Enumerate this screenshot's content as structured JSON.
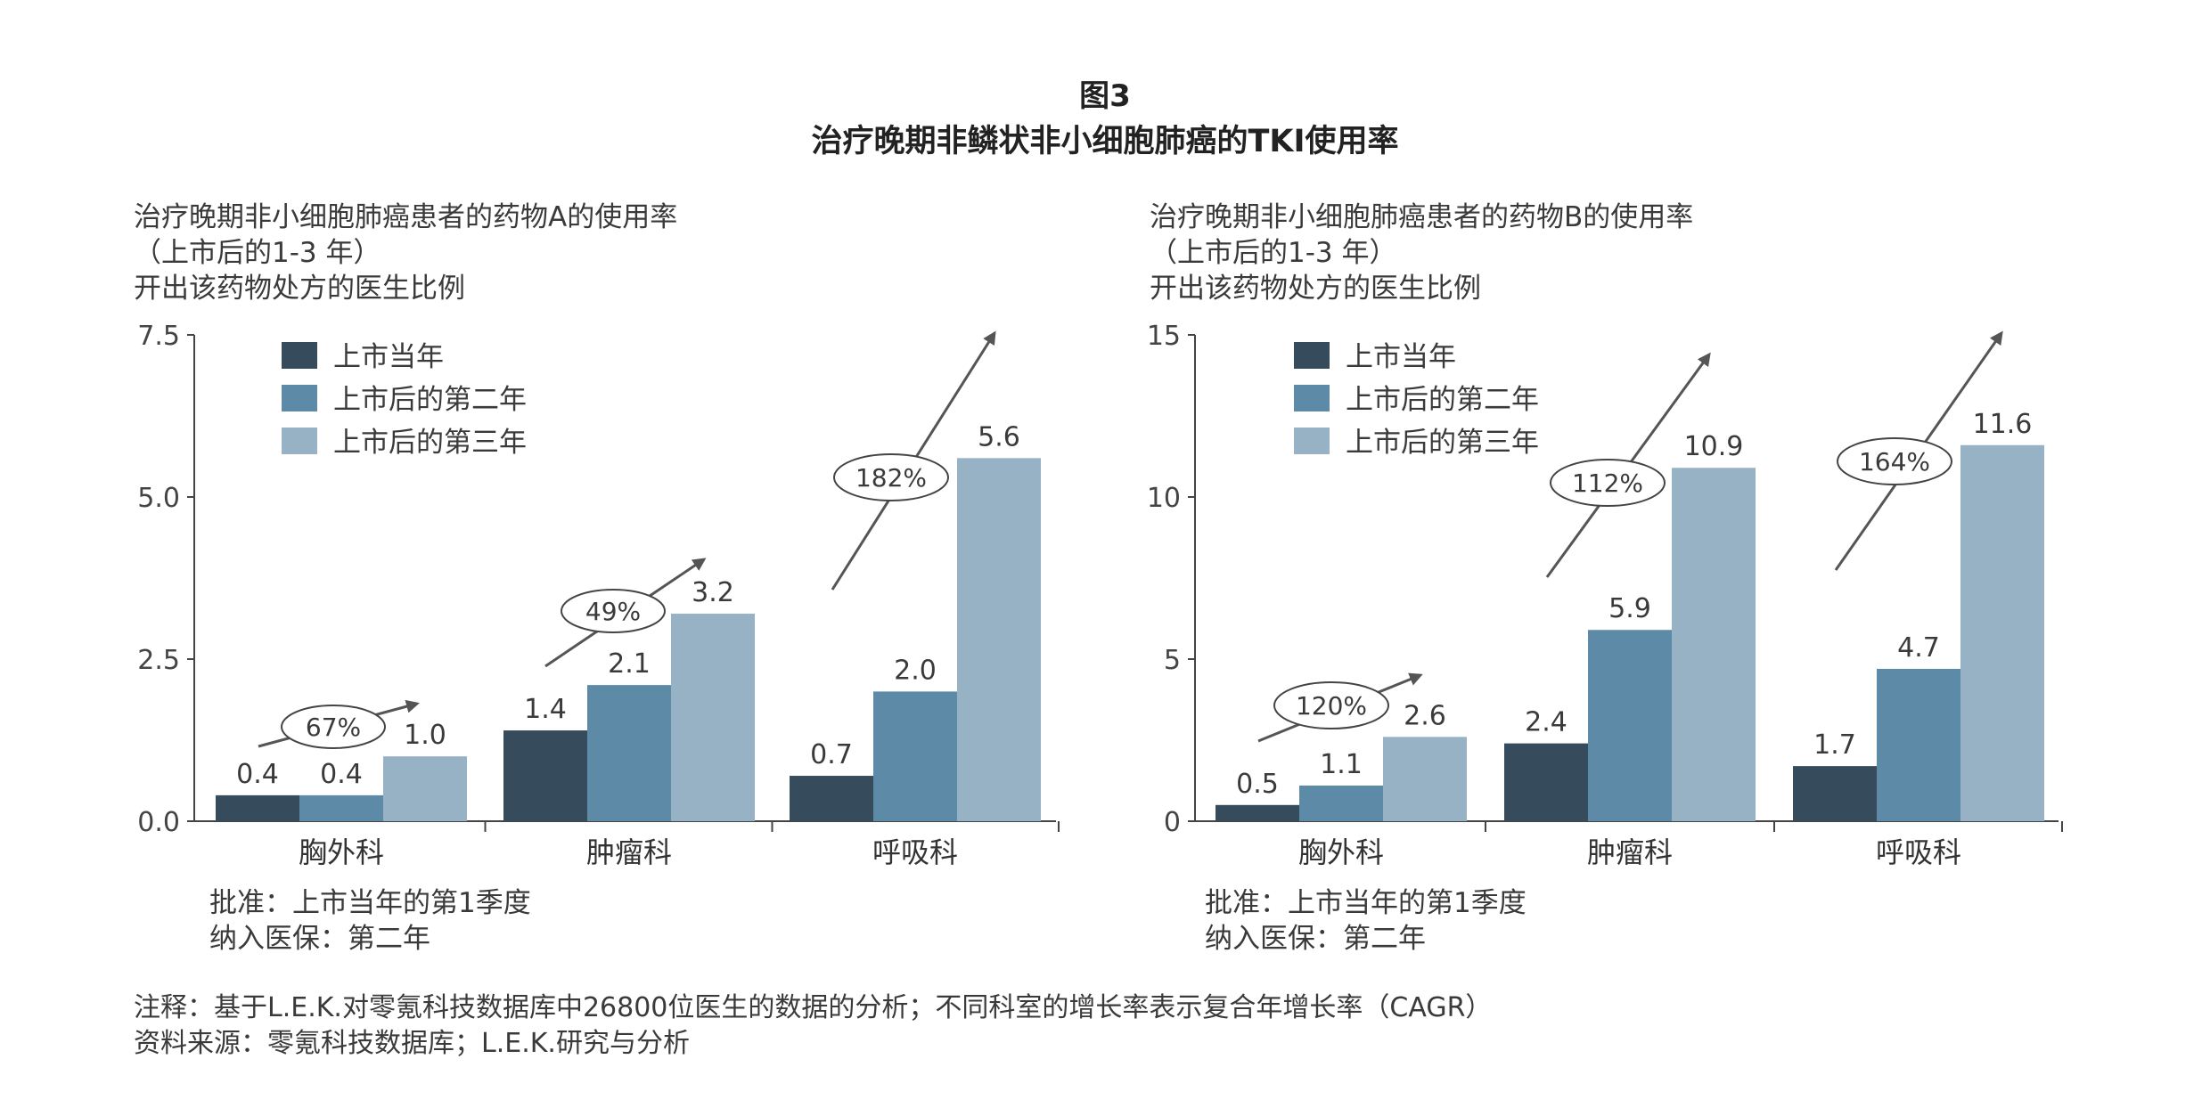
{
  "figure": {
    "number": "图3",
    "title": "治疗晚期非鳞状非小细胞肺癌的TKI使用率"
  },
  "colors": {
    "year1": "#364c5c",
    "year2": "#5d8aa6",
    "year3": "#97b2c5",
    "axis": "#444444"
  },
  "legend": [
    "上市当年",
    "上市后的第二年",
    "上市后的第三年"
  ],
  "panels": [
    {
      "label_lines": [
        "治疗晚期非小细胞肺癌患者的药物A的使用率",
        "（上市后的1-3 年）",
        "开出该药物处方的医生比例"
      ],
      "notes": [
        "批准：上市当年的第1季度",
        "纳入医保：第二年"
      ]
    },
    {
      "label_lines": [
        "治疗晚期非小细胞肺癌患者的药物B的使用率",
        "（上市后的1-3 年）",
        "开出该药物处方的医生比例"
      ],
      "notes": [
        "批准：上市当年的第1季度",
        "纳入医保：第二年"
      ]
    }
  ],
  "chart_data": [
    {
      "type": "bar",
      "categories": [
        "胸外科",
        "肿瘤科",
        "呼吸科"
      ],
      "series": [
        {
          "name": "上市当年",
          "values": [
            0.4,
            1.4,
            0.7
          ],
          "labels": [
            "0.4",
            "1.4",
            "0.7"
          ]
        },
        {
          "name": "上市后的第二年",
          "values": [
            0.4,
            2.1,
            2.0
          ],
          "labels": [
            "0.4",
            "2.1",
            "2.0"
          ]
        },
        {
          "name": "上市后的第三年",
          "values": [
            1.0,
            3.2,
            5.6
          ],
          "labels": [
            "1.0",
            "3.2",
            "5.6"
          ]
        }
      ],
      "growth": [
        "67%",
        "49%",
        "182%"
      ],
      "ylim": [
        0,
        7.5
      ],
      "yticks": [
        0,
        2.5,
        5,
        7.5
      ],
      "ytick_labels": [
        "0.0",
        "2.5",
        "5.0",
        "7.5"
      ],
      "legend_position": "top-left",
      "grid": false
    },
    {
      "type": "bar",
      "categories": [
        "胸外科",
        "肿瘤科",
        "呼吸科"
      ],
      "series": [
        {
          "name": "上市当年",
          "values": [
            0.5,
            2.4,
            1.7
          ],
          "labels": [
            "0.5",
            "2.4",
            "1.7"
          ]
        },
        {
          "name": "上市后的第二年",
          "values": [
            1.1,
            5.9,
            4.7
          ],
          "labels": [
            "1.1",
            "5.9",
            "4.7"
          ]
        },
        {
          "name": "上市后的第三年",
          "values": [
            2.6,
            10.9,
            11.6
          ],
          "labels": [
            "2.6",
            "10.9",
            "11.6"
          ]
        }
      ],
      "growth": [
        "120%",
        "112%",
        "164%"
      ],
      "ylim": [
        0,
        15
      ],
      "yticks": [
        0,
        5,
        10,
        15
      ],
      "ytick_labels": [
        "0",
        "5",
        "10",
        "15"
      ],
      "legend_position": "top-left",
      "grid": false
    }
  ],
  "footnotes": [
    "注释：基于L.E.K.对零氪科技数据库中26800位医生的数据的分析；不同科室的增长率表示复合年增长率（CAGR）",
    "资料来源：零氪科技数据库；L.E.K.研究与分析"
  ]
}
